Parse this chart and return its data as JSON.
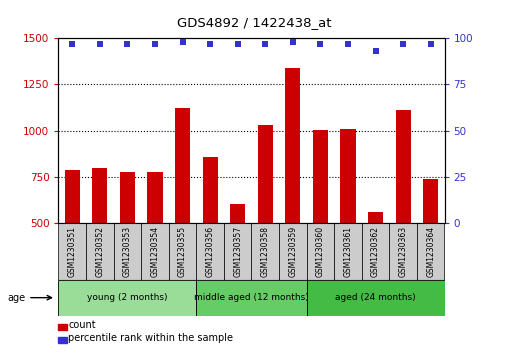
{
  "title": "GDS4892 / 1422438_at",
  "samples": [
    "GSM1230351",
    "GSM1230352",
    "GSM1230353",
    "GSM1230354",
    "GSM1230355",
    "GSM1230356",
    "GSM1230357",
    "GSM1230358",
    "GSM1230359",
    "GSM1230360",
    "GSM1230361",
    "GSM1230362",
    "GSM1230363",
    "GSM1230364"
  ],
  "counts": [
    785,
    800,
    775,
    775,
    1120,
    860,
    605,
    1030,
    1340,
    1005,
    1010,
    560,
    1110,
    740
  ],
  "percentile_ranks": [
    97,
    97,
    97,
    97,
    98,
    97,
    97,
    97,
    98,
    97,
    97,
    93,
    97,
    97
  ],
  "bar_color": "#cc0000",
  "dot_color": "#3333cc",
  "ylim_left": [
    500,
    1500
  ],
  "ylim_right": [
    0,
    100
  ],
  "yticks_left": [
    500,
    750,
    1000,
    1250,
    1500
  ],
  "yticks_right": [
    0,
    25,
    50,
    75,
    100
  ],
  "grid_lines": [
    750,
    1000,
    1250
  ],
  "groups": [
    {
      "label": "young (2 months)",
      "start": 0,
      "end": 5,
      "color": "#99dd99"
    },
    {
      "label": "middle aged (12 months)",
      "start": 5,
      "end": 9,
      "color": "#66cc66"
    },
    {
      "label": "aged (24 months)",
      "start": 9,
      "end": 14,
      "color": "#44bb44"
    }
  ],
  "sample_box_color": "#cccccc",
  "tick_color_left": "#cc0000",
  "tick_color_right": "#3333cc",
  "legend_count_label": "count",
  "legend_percentile_label": "percentile rank within the sample",
  "age_label": "age"
}
